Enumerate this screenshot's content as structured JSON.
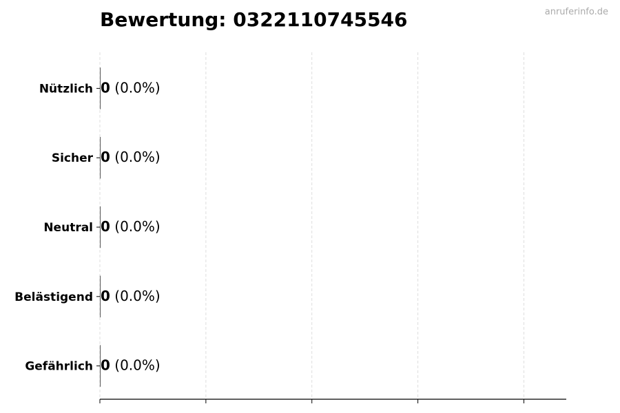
{
  "watermark": "anruferinfo.de",
  "chart_data": {
    "type": "bar",
    "orientation": "horizontal",
    "title": "Bewertung: 0322110745546",
    "categories": [
      "Nützlich",
      "Sicher",
      "Neutral",
      "Belästigend",
      "Gefährlich"
    ],
    "values": [
      0,
      0,
      0,
      0,
      0
    ],
    "percent_labels": [
      "(0.0%)",
      "(0.0%)",
      "(0.0%)",
      "(0.0%)",
      "(0.0%)"
    ],
    "xlim": [
      0,
      4.4
    ],
    "xticks": [
      0,
      1,
      2,
      3,
      4
    ],
    "xtick_labels_shown": false,
    "grid": "vertical dashed",
    "colors": {
      "grid": "#dddddd",
      "axis": "#000000",
      "watermark": "#aaaaaa"
    }
  }
}
